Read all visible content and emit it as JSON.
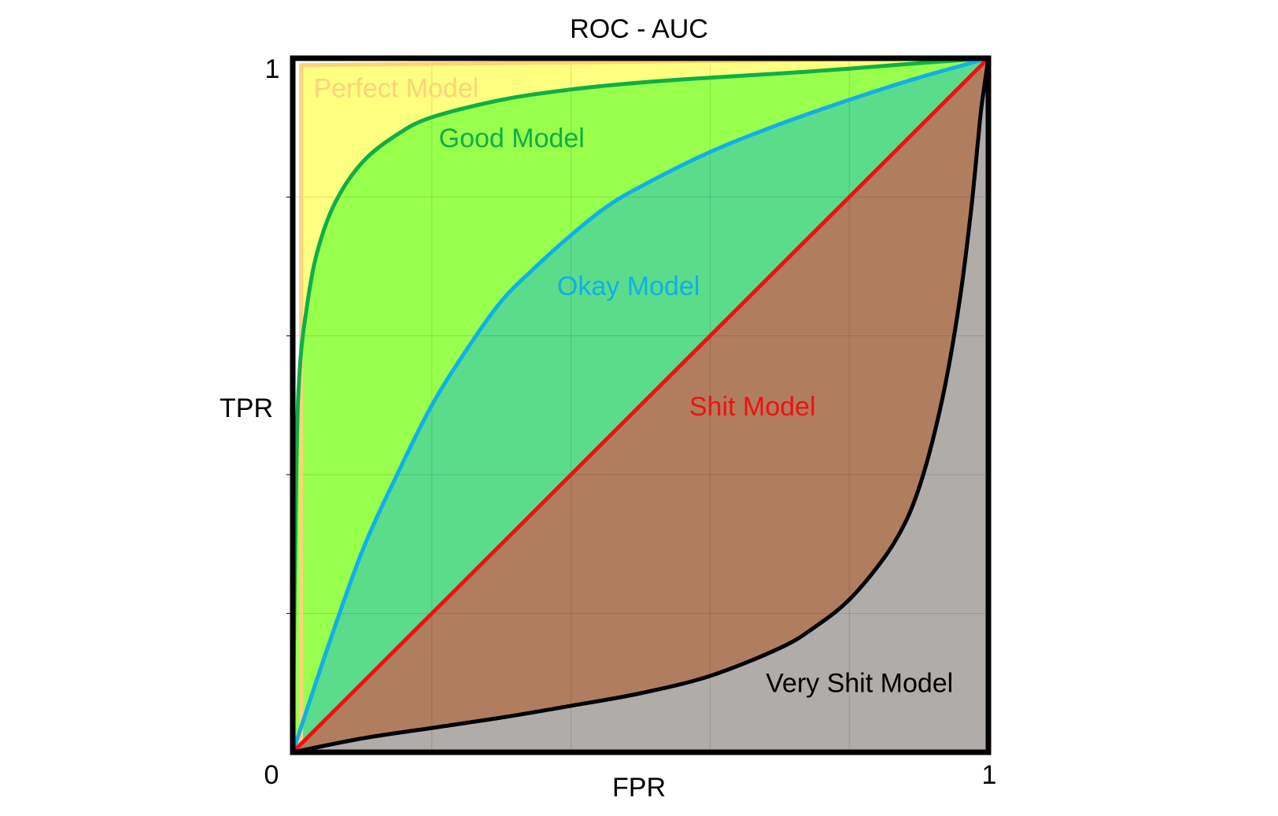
{
  "chart_data": {
    "type": "area",
    "title": "ROC - AUC",
    "xlabel": "FPR",
    "ylabel": "TPR",
    "xlim": [
      0,
      1
    ],
    "ylim": [
      0,
      1
    ],
    "x_ticks": [
      "0",
      "1"
    ],
    "y_ticks": [
      "1"
    ],
    "grid": true,
    "grid_divisions": 5,
    "series": [
      {
        "name": "Perfect Model",
        "color": "#FFD27A",
        "fill": "#FFFF80",
        "x": [
          0,
          0.012,
          0.012,
          1
        ],
        "y": [
          0,
          0.02,
          0.99,
          1
        ]
      },
      {
        "name": "Good Model",
        "color": "#0FAF45",
        "fill": "#99FF4D",
        "x": [
          0,
          0.005,
          0.01,
          0.02,
          0.035,
          0.06,
          0.1,
          0.15,
          0.2,
          0.3,
          0.4,
          0.5,
          0.6,
          0.7,
          0.8,
          0.9,
          1
        ],
        "y": [
          0,
          0.4,
          0.55,
          0.64,
          0.72,
          0.79,
          0.85,
          0.89,
          0.915,
          0.94,
          0.955,
          0.965,
          0.972,
          0.978,
          0.985,
          0.993,
          1
        ]
      },
      {
        "name": "Okay Model",
        "color": "#12AEEA",
        "fill": "#5BDC8B",
        "x": [
          0,
          0.05,
          0.1,
          0.15,
          0.2,
          0.25,
          0.3,
          0.35,
          0.4,
          0.45,
          0.5,
          0.6,
          0.7,
          0.8,
          0.9,
          1
        ],
        "y": [
          0,
          0.15,
          0.29,
          0.4,
          0.5,
          0.58,
          0.65,
          0.7,
          0.745,
          0.785,
          0.815,
          0.865,
          0.905,
          0.94,
          0.972,
          1
        ]
      },
      {
        "name": "Shit Model",
        "color": "#EE1111",
        "fill": "#B07E5E",
        "x": [
          0,
          1
        ],
        "y": [
          0,
          1
        ]
      },
      {
        "name": "Very Shit Model",
        "color": "#000000",
        "fill": "#B0ACAA",
        "x": [
          0,
          0.1,
          0.2,
          0.3,
          0.4,
          0.5,
          0.6,
          0.7,
          0.75,
          0.8,
          0.85,
          0.88,
          0.9,
          0.92,
          0.94,
          0.96,
          0.975,
          0.985,
          0.99,
          1
        ],
        "y": [
          0,
          0.02,
          0.035,
          0.05,
          0.067,
          0.085,
          0.11,
          0.15,
          0.18,
          0.22,
          0.28,
          0.33,
          0.38,
          0.45,
          0.54,
          0.66,
          0.78,
          0.88,
          0.93,
          1
        ]
      }
    ],
    "annotations": [
      {
        "text": "Perfect Model",
        "series": "Perfect Model",
        "x": 0.03,
        "y": 0.944
      },
      {
        "text": "Good Model",
        "series": "Good Model",
        "x": 0.21,
        "y": 0.872
      },
      {
        "text": "Okay Model",
        "series": "Okay Model",
        "x": 0.38,
        "y": 0.659
      },
      {
        "text": "Shit Model",
        "series": "Shit Model",
        "x": 0.57,
        "y": 0.485
      },
      {
        "text": "Very Shit Model",
        "series": "Very Shit Model",
        "x": 0.68,
        "y": 0.087
      }
    ]
  }
}
